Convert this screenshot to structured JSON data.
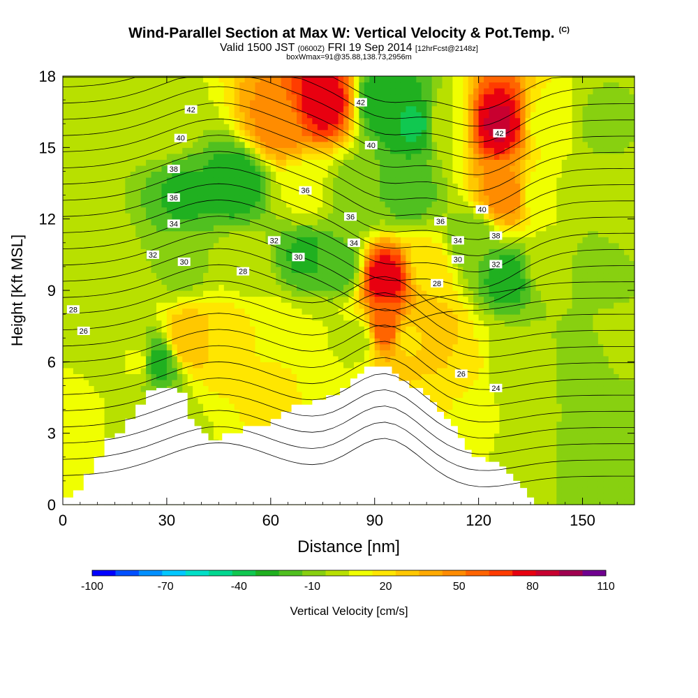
{
  "header": {
    "title": "Wind-Parallel Section at Max W: Vertical Velocity & Pot.Temp.",
    "copyright": "(C)",
    "valid_prefix": "Valid 1500 JST",
    "valid_utc": "(0600Z)",
    "valid_date": "FRI 19 Sep 2014",
    "forecast": "[12hrFcst@2148z]",
    "boxwmax": "boxWmax=91@35.88,138.73,2956m"
  },
  "chart_data": {
    "type": "heatmap",
    "xlabel": "Distance [nm]",
    "ylabel": "Height [Kft MSL]",
    "xlim": [
      0,
      165
    ],
    "ylim": [
      0,
      18
    ],
    "x_ticks": [
      0,
      30,
      60,
      90,
      120,
      150
    ],
    "y_ticks": [
      0,
      3,
      6,
      9,
      12,
      15,
      18
    ],
    "colorbar": {
      "label": "Vertical Velocity [cm/s]",
      "ticks": [
        -100,
        -70,
        -40,
        -10,
        20,
        50,
        80,
        110
      ],
      "levels": [
        -100,
        -90,
        -80,
        -70,
        -60,
        -50,
        -40,
        -30,
        -20,
        -10,
        0,
        10,
        20,
        30,
        40,
        50,
        60,
        70,
        80,
        90,
        100,
        110
      ],
      "colors": [
        "#0000ff",
        "#0050ff",
        "#0090ff",
        "#00c8ff",
        "#00e0c8",
        "#00d890",
        "#10c850",
        "#20b020",
        "#50c020",
        "#88d010",
        "#b8e000",
        "#f0ff00",
        "#ffe600",
        "#ffc800",
        "#ffaa00",
        "#ff8c00",
        "#ff6400",
        "#ff3c00",
        "#e80010",
        "#c80030",
        "#a00050",
        "#700090"
      ]
    },
    "terrain": [
      [
        0,
        0.3
      ],
      [
        3,
        0.3
      ],
      [
        3,
        0.6
      ],
      [
        6,
        0.6
      ],
      [
        6,
        1.3
      ],
      [
        9,
        1.3
      ],
      [
        9,
        2.0
      ],
      [
        12,
        2.0
      ],
      [
        12,
        2.8
      ],
      [
        15,
        2.8
      ],
      [
        15,
        3.0
      ],
      [
        18,
        3.0
      ],
      [
        18,
        3.6
      ],
      [
        21,
        3.6
      ],
      [
        21,
        4.2
      ],
      [
        24,
        4.2
      ],
      [
        24,
        4.8
      ],
      [
        27,
        4.8
      ],
      [
        27,
        4.9
      ],
      [
        33,
        4.9
      ],
      [
        33,
        4.7
      ],
      [
        36,
        4.7
      ],
      [
        36,
        3.6
      ],
      [
        38,
        3.6
      ],
      [
        38,
        3.3
      ],
      [
        40,
        3.3
      ],
      [
        40,
        3.0
      ],
      [
        42,
        3.0
      ],
      [
        42,
        2.7
      ],
      [
        46,
        2.7
      ],
      [
        46,
        3.0
      ],
      [
        52,
        3.0
      ],
      [
        52,
        3.3
      ],
      [
        60,
        3.3
      ],
      [
        60,
        3.6
      ],
      [
        63,
        3.6
      ],
      [
        63,
        3.9
      ],
      [
        66,
        3.9
      ],
      [
        66,
        4.2
      ],
      [
        72,
        4.2
      ],
      [
        72,
        4.4
      ],
      [
        76,
        4.4
      ],
      [
        76,
        4.6
      ],
      [
        80,
        4.6
      ],
      [
        80,
        4.9
      ],
      [
        83,
        4.9
      ],
      [
        83,
        5.3
      ],
      [
        85,
        5.3
      ],
      [
        85,
        5.5
      ],
      [
        87,
        5.5
      ],
      [
        87,
        5.8
      ],
      [
        95,
        5.8
      ],
      [
        95,
        5.5
      ],
      [
        97,
        5.5
      ],
      [
        97,
        5.2
      ],
      [
        100,
        5.2
      ],
      [
        100,
        4.9
      ],
      [
        104,
        4.9
      ],
      [
        104,
        4.6
      ],
      [
        106,
        4.6
      ],
      [
        106,
        4.3
      ],
      [
        108,
        4.3
      ],
      [
        108,
        3.9
      ],
      [
        110,
        3.9
      ],
      [
        110,
        3.6
      ],
      [
        112,
        3.6
      ],
      [
        112,
        3.3
      ],
      [
        114,
        3.3
      ],
      [
        114,
        2.8
      ],
      [
        116,
        2.8
      ],
      [
        116,
        2.3
      ],
      [
        118,
        2.3
      ],
      [
        118,
        2.0
      ],
      [
        122,
        2.0
      ],
      [
        122,
        1.8
      ],
      [
        126,
        1.8
      ],
      [
        126,
        1.6
      ],
      [
        128,
        1.6
      ],
      [
        128,
        1.3
      ],
      [
        130,
        1.3
      ],
      [
        130,
        1.0
      ],
      [
        132,
        1.0
      ],
      [
        132,
        0.7
      ],
      [
        134,
        0.7
      ],
      [
        134,
        0.3
      ],
      [
        136,
        0.3
      ],
      [
        136,
        0
      ]
    ],
    "w_field": [
      [
        0,
        17,
        0
      ],
      [
        12,
        16,
        4
      ],
      [
        30,
        16,
        8
      ],
      [
        62,
        16,
        55
      ],
      [
        75,
        17,
        88
      ],
      [
        93,
        17,
        -28
      ],
      [
        102,
        16,
        -32
      ],
      [
        110,
        16,
        10
      ],
      [
        126,
        16,
        92
      ],
      [
        140,
        16,
        15
      ],
      [
        155,
        16,
        -2
      ],
      [
        5,
        13,
        2
      ],
      [
        35,
        13,
        -22
      ],
      [
        50,
        13.5,
        -28
      ],
      [
        70,
        13,
        12
      ],
      [
        86,
        13,
        -10
      ],
      [
        100,
        13,
        -15
      ],
      [
        128,
        13,
        55
      ],
      [
        138,
        13,
        12
      ],
      [
        150,
        13,
        2
      ],
      [
        10,
        10,
        8
      ],
      [
        35,
        10,
        -3
      ],
      [
        52,
        10,
        8
      ],
      [
        70,
        10.5,
        -22
      ],
      [
        80,
        10,
        -15
      ],
      [
        93,
        9.5,
        88
      ],
      [
        106,
        10,
        25
      ],
      [
        118,
        11,
        -10
      ],
      [
        128,
        9.5,
        -25
      ],
      [
        140,
        10,
        5
      ],
      [
        155,
        10,
        -5
      ],
      [
        5,
        7,
        10
      ],
      [
        22,
        6,
        12
      ],
      [
        27,
        6,
        -25
      ],
      [
        36,
        7,
        40
      ],
      [
        46,
        7,
        28
      ],
      [
        62,
        7,
        18
      ],
      [
        75,
        7,
        10
      ],
      [
        85,
        7,
        5
      ],
      [
        93,
        7.5,
        70
      ],
      [
        100,
        7,
        28
      ],
      [
        108,
        7,
        38
      ],
      [
        118,
        6,
        22
      ],
      [
        126,
        6,
        5
      ],
      [
        135,
        6,
        2
      ],
      [
        150,
        6,
        -5
      ],
      [
        160,
        7,
        2
      ],
      [
        5,
        3,
        15
      ],
      [
        18,
        3,
        8
      ],
      [
        30,
        3,
        5
      ],
      [
        126,
        3,
        10
      ],
      [
        138,
        2,
        2
      ],
      [
        148,
        2,
        -3
      ],
      [
        160,
        2,
        -5
      ],
      [
        163,
        12,
        5
      ],
      [
        60,
        5,
        22
      ],
      [
        112,
        4,
        20
      ]
    ],
    "theta_labels": [
      {
        "text": "42",
        "x": 37,
        "y": 16.6
      },
      {
        "text": "40",
        "x": 34,
        "y": 15.4
      },
      {
        "text": "38",
        "x": 32,
        "y": 14.1
      },
      {
        "text": "36",
        "x": 32,
        "y": 12.9
      },
      {
        "text": "34",
        "x": 32,
        "y": 11.8
      },
      {
        "text": "32",
        "x": 26,
        "y": 10.5
      },
      {
        "text": "30",
        "x": 35,
        "y": 10.2
      },
      {
        "text": "28",
        "x": 52,
        "y": 9.8
      },
      {
        "text": "28",
        "x": 3,
        "y": 8.2
      },
      {
        "text": "26",
        "x": 6,
        "y": 7.3
      },
      {
        "text": "32",
        "x": 61,
        "y": 11.1
      },
      {
        "text": "30",
        "x": 68,
        "y": 10.4
      },
      {
        "text": "36",
        "x": 70,
        "y": 13.2
      },
      {
        "text": "36",
        "x": 83,
        "y": 12.1
      },
      {
        "text": "34",
        "x": 84,
        "y": 11.0
      },
      {
        "text": "42",
        "x": 86,
        "y": 16.9
      },
      {
        "text": "40",
        "x": 89,
        "y": 15.1
      },
      {
        "text": "36",
        "x": 109,
        "y": 11.9
      },
      {
        "text": "34",
        "x": 114,
        "y": 11.1
      },
      {
        "text": "30",
        "x": 114,
        "y": 10.3
      },
      {
        "text": "28",
        "x": 108,
        "y": 9.3
      },
      {
        "text": "40",
        "x": 121,
        "y": 12.4
      },
      {
        "text": "38",
        "x": 125,
        "y": 11.3
      },
      {
        "text": "32",
        "x": 125,
        "y": 10.1
      },
      {
        "text": "42",
        "x": 126,
        "y": 15.6
      },
      {
        "text": "26",
        "x": 115,
        "y": 5.5
      },
      {
        "text": "24",
        "x": 125,
        "y": 4.9
      }
    ]
  }
}
